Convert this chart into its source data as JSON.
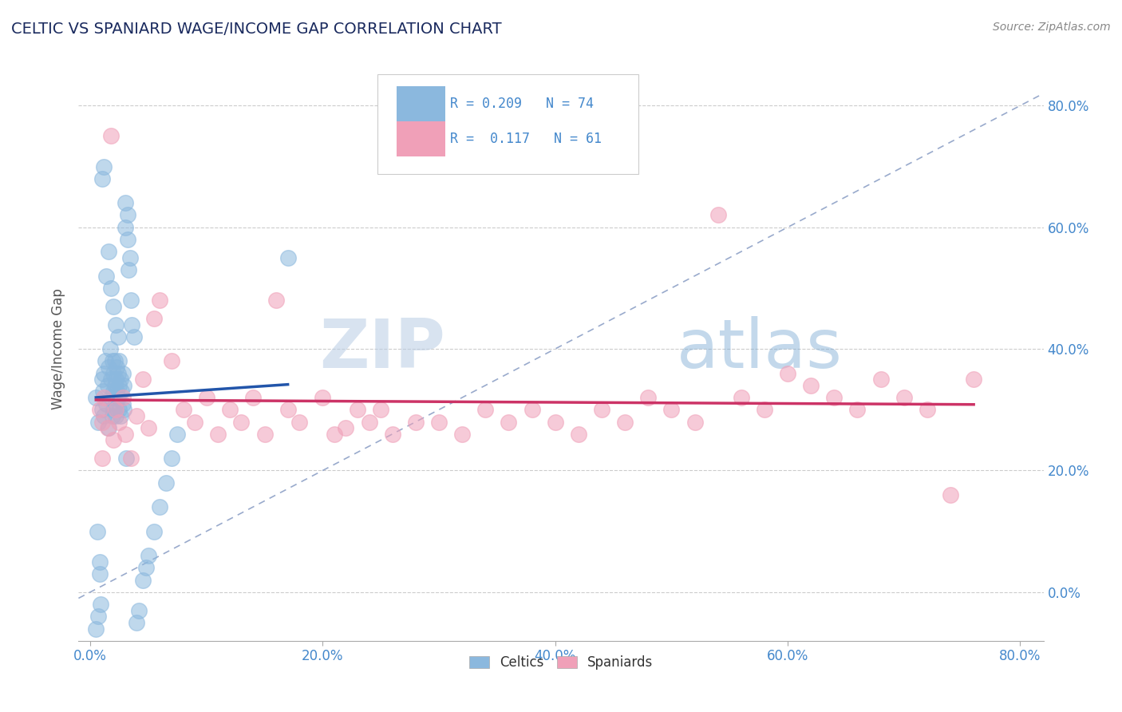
{
  "title": "CELTIC VS SPANIARD WAGE/INCOME GAP CORRELATION CHART",
  "source": "Source: ZipAtlas.com",
  "ylabel": "Wage/Income Gap",
  "xlim": [
    -0.01,
    0.82
  ],
  "ylim": [
    -0.08,
    0.88
  ],
  "xticks": [
    0.0,
    0.2,
    0.4,
    0.6,
    0.8
  ],
  "xtick_labels": [
    "0.0%",
    "20.0%",
    "40.0%",
    "60.0%",
    "80.0%"
  ],
  "yticks": [
    0.0,
    0.2,
    0.4,
    0.6,
    0.8
  ],
  "ytick_labels": [
    "0.0%",
    "20.0%",
    "40.0%",
    "60.0%",
    "80.0%"
  ],
  "celtic_color": "#8bb8de",
  "spaniard_color": "#f0a0b8",
  "celtic_line_color": "#2255aa",
  "spaniard_line_color": "#cc3366",
  "diagonal_color": "#99aacc",
  "title_color": "#1a2a5e",
  "axis_label_color": "#4488cc",
  "watermark_color": "#c8d8ee",
  "legend_r_celtic": "R = 0.209",
  "legend_n_celtic": "N = 74",
  "legend_r_spaniard": "R =  0.117",
  "legend_n_spaniard": "N = 61",
  "celtic_x": [
    0.005,
    0.007,
    0.008,
    0.01,
    0.01,
    0.011,
    0.012,
    0.012,
    0.013,
    0.014,
    0.015,
    0.016,
    0.016,
    0.017,
    0.018,
    0.018,
    0.019,
    0.019,
    0.02,
    0.02,
    0.02,
    0.021,
    0.021,
    0.022,
    0.022,
    0.022,
    0.023,
    0.023,
    0.024,
    0.024,
    0.025,
    0.025,
    0.025,
    0.026,
    0.026,
    0.027,
    0.028,
    0.028,
    0.029,
    0.029,
    0.03,
    0.03,
    0.031,
    0.032,
    0.032,
    0.033,
    0.034,
    0.035,
    0.036,
    0.038,
    0.04,
    0.042,
    0.045,
    0.048,
    0.05,
    0.055,
    0.06,
    0.065,
    0.07,
    0.075,
    0.018,
    0.02,
    0.022,
    0.024,
    0.01,
    0.012,
    0.014,
    0.016,
    0.008,
    0.006,
    0.005,
    0.007,
    0.009,
    0.17
  ],
  "celtic_y": [
    0.32,
    0.28,
    0.03,
    0.35,
    0.3,
    0.33,
    0.36,
    0.29,
    0.38,
    0.31,
    0.34,
    0.37,
    0.27,
    0.4,
    0.32,
    0.35,
    0.29,
    0.38,
    0.33,
    0.36,
    0.3,
    0.34,
    0.38,
    0.31,
    0.35,
    0.29,
    0.33,
    0.37,
    0.32,
    0.36,
    0.3,
    0.34,
    0.38,
    0.35,
    0.29,
    0.33,
    0.31,
    0.36,
    0.34,
    0.3,
    0.6,
    0.64,
    0.22,
    0.58,
    0.62,
    0.53,
    0.55,
    0.48,
    0.44,
    0.42,
    -0.05,
    -0.03,
    0.02,
    0.04,
    0.06,
    0.1,
    0.14,
    0.18,
    0.22,
    0.26,
    0.5,
    0.47,
    0.44,
    0.42,
    0.68,
    0.7,
    0.52,
    0.56,
    0.05,
    0.1,
    -0.06,
    -0.04,
    -0.02,
    0.55
  ],
  "spaniard_x": [
    0.008,
    0.01,
    0.012,
    0.015,
    0.018,
    0.02,
    0.022,
    0.025,
    0.028,
    0.03,
    0.035,
    0.04,
    0.045,
    0.05,
    0.055,
    0.06,
    0.07,
    0.08,
    0.09,
    0.1,
    0.11,
    0.12,
    0.13,
    0.14,
    0.15,
    0.16,
    0.17,
    0.18,
    0.2,
    0.21,
    0.22,
    0.23,
    0.24,
    0.25,
    0.26,
    0.28,
    0.3,
    0.32,
    0.34,
    0.36,
    0.38,
    0.4,
    0.42,
    0.44,
    0.46,
    0.48,
    0.5,
    0.52,
    0.54,
    0.56,
    0.58,
    0.6,
    0.62,
    0.64,
    0.66,
    0.68,
    0.7,
    0.72,
    0.74,
    0.76,
    0.01
  ],
  "spaniard_y": [
    0.3,
    0.28,
    0.32,
    0.27,
    0.75,
    0.25,
    0.3,
    0.28,
    0.32,
    0.26,
    0.22,
    0.29,
    0.35,
    0.27,
    0.45,
    0.48,
    0.38,
    0.3,
    0.28,
    0.32,
    0.26,
    0.3,
    0.28,
    0.32,
    0.26,
    0.48,
    0.3,
    0.28,
    0.32,
    0.26,
    0.27,
    0.3,
    0.28,
    0.3,
    0.26,
    0.28,
    0.28,
    0.26,
    0.3,
    0.28,
    0.3,
    0.28,
    0.26,
    0.3,
    0.28,
    0.32,
    0.3,
    0.28,
    0.62,
    0.32,
    0.3,
    0.36,
    0.34,
    0.32,
    0.3,
    0.35,
    0.32,
    0.3,
    0.16,
    0.35,
    0.22
  ]
}
